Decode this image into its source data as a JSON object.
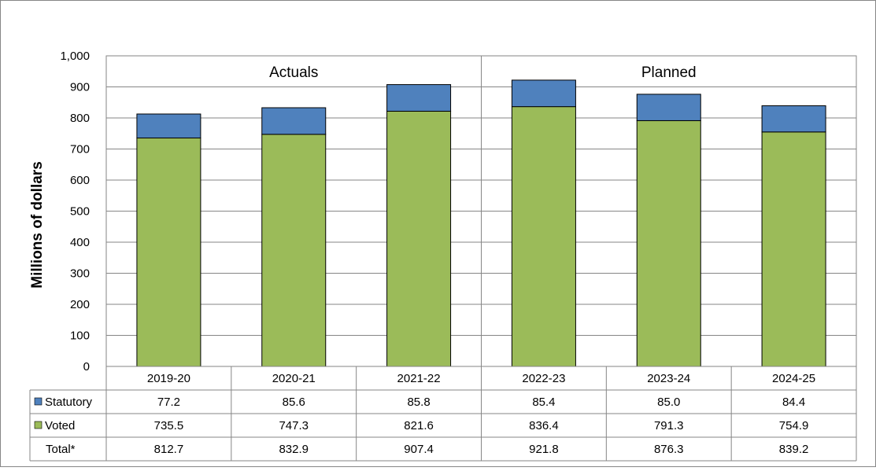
{
  "chart_data": {
    "type": "bar",
    "stacked": true,
    "ylabel": "Millions  of dollars",
    "ylim": [
      0,
      1000
    ],
    "yticks": [
      "0",
      "100",
      "200",
      "300",
      "400",
      "500",
      "600",
      "700",
      "800",
      "900",
      "1,000"
    ],
    "categories": [
      "2019-20",
      "2020-21",
      "2021-22",
      "2022-23",
      "2023-24",
      "2024-25"
    ],
    "groups": [
      {
        "label": "Actuals",
        "span": 3
      },
      {
        "label": "Planned",
        "span": 3
      }
    ],
    "series": [
      {
        "name": "Statutory",
        "color": "#4f81bd",
        "values": [
          77.2,
          85.6,
          85.8,
          85.4,
          85.0,
          84.4
        ]
      },
      {
        "name": "Voted",
        "color": "#9bbb59",
        "values": [
          735.5,
          747.3,
          821.6,
          836.4,
          791.3,
          754.9
        ]
      }
    ],
    "table": {
      "rows": [
        {
          "label": "Statutory",
          "series": 0,
          "values": [
            "77.2",
            "85.6",
            "85.8",
            "85.4",
            "85.0",
            "84.4"
          ]
        },
        {
          "label": "Voted",
          "series": 1,
          "values": [
            "735.5",
            "747.3",
            "821.6",
            "836.4",
            "791.3",
            "754.9"
          ]
        },
        {
          "label": "Total*",
          "series": null,
          "values": [
            "812.7",
            "832.9",
            "907.4",
            "921.8",
            "876.3",
            "839.2"
          ]
        }
      ]
    },
    "grid": true
  }
}
